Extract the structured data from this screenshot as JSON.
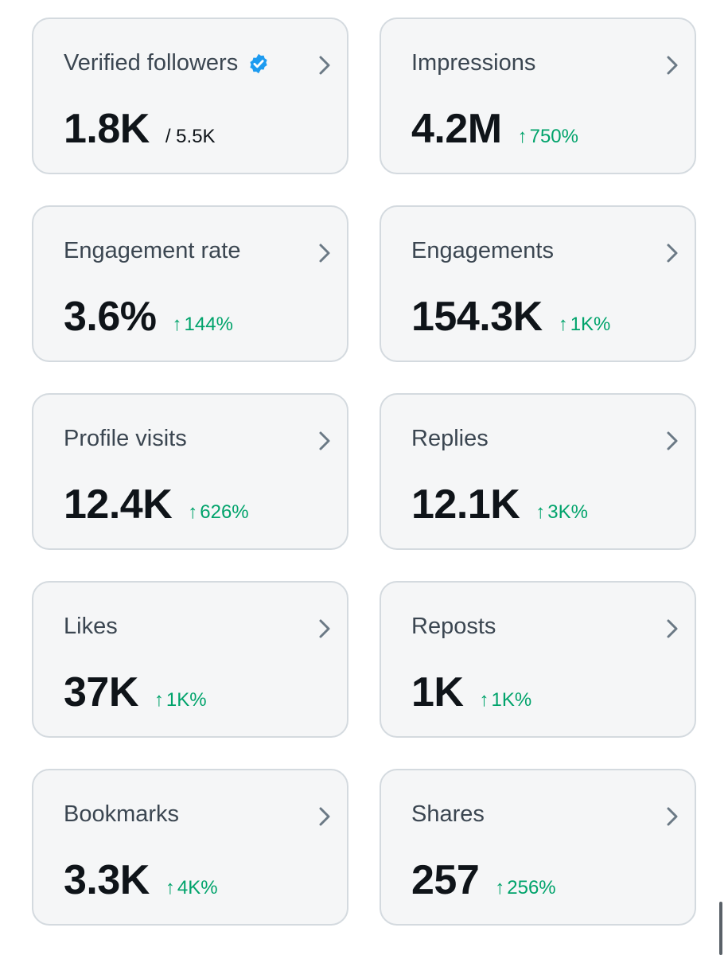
{
  "cards": [
    {
      "label": "Verified followers",
      "value": "1.8K",
      "sub": "/ 5.5K"
    },
    {
      "label": "Impressions",
      "value": "4.2M",
      "arrow": "↑",
      "change": "750%"
    },
    {
      "label": "Engagement rate",
      "value": "3.6%",
      "arrow": "↑",
      "change": "144%"
    },
    {
      "label": "Engagements",
      "value": "154.3K",
      "arrow": "↑",
      "change": "1K%"
    },
    {
      "label": "Profile visits",
      "value": "12.4K",
      "arrow": "↑",
      "change": "626%"
    },
    {
      "label": "Replies",
      "value": "12.1K",
      "arrow": "↑",
      "change": "3K%"
    },
    {
      "label": "Likes",
      "value": "37K",
      "arrow": "↑",
      "change": "1K%"
    },
    {
      "label": "Reposts",
      "value": "1K",
      "arrow": "↑",
      "change": "1K%"
    },
    {
      "label": "Bookmarks",
      "value": "3.3K",
      "arrow": "↑",
      "change": "4K%"
    },
    {
      "label": "Shares",
      "value": "257",
      "arrow": "↑",
      "change": "256%"
    }
  ],
  "icons": {
    "chevron": "chevron-right-icon",
    "verified": "verified-badge-icon",
    "trend": "arrow-up-icon"
  },
  "colors": {
    "card_bg": "#f5f6f7",
    "card_border": "#d4dadf",
    "label": "#3b4651",
    "value": "#0f1419",
    "positive_change": "#00a36b",
    "verified_blue": "#1d9bf0"
  }
}
